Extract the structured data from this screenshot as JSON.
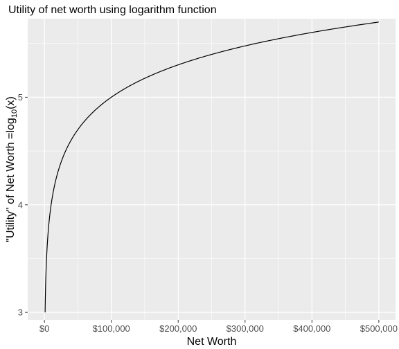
{
  "chart_data": {
    "type": "line",
    "title": "Utility of net worth using logarithm function",
    "xlabel": "Net Worth",
    "ylabel": {
      "prefix": "\"Utility\" of Net Worth =log",
      "subscript": "10",
      "suffix": "(x)"
    },
    "function": "log10",
    "x_range": [
      1000,
      500000
    ],
    "xlim": [
      -25000,
      525000
    ],
    "ylim": [
      2.93,
      5.73
    ],
    "x_ticks": [
      {
        "value": 0,
        "label": "$0"
      },
      {
        "value": 100000,
        "label": "$100,000"
      },
      {
        "value": 200000,
        "label": "$200,000"
      },
      {
        "value": 300000,
        "label": "$300,000"
      },
      {
        "value": 400000,
        "label": "$400,000"
      },
      {
        "value": 500000,
        "label": "$500,000"
      }
    ],
    "y_ticks": [
      {
        "value": 3,
        "label": "3"
      },
      {
        "value": 4,
        "label": "4"
      },
      {
        "value": 5,
        "label": "5"
      }
    ],
    "grid": true,
    "colors": {
      "panel_background": "#ebebeb",
      "grid_major": "#ffffff",
      "line": "#000000"
    }
  }
}
